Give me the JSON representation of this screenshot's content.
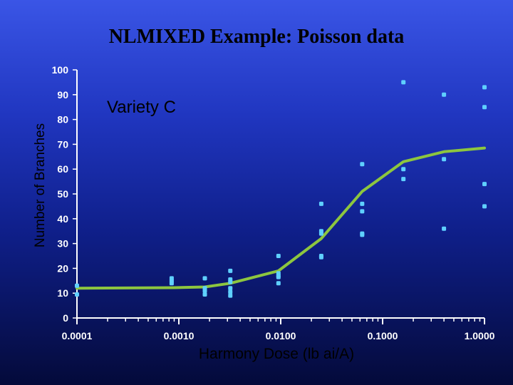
{
  "slide": {
    "title": "NLMIXED Example: Poisson data"
  },
  "colors": {
    "background_top": "#3a55e6",
    "background_bottom": "#040a3a",
    "points": "#5fd0ff",
    "fit_line": "#8dc63f",
    "axis": "#ffffff",
    "tick_labels": "#ffffff",
    "ylabel": "#000000",
    "xlabel": "#000000"
  },
  "chart_data": {
    "type": "scatter",
    "annotation": "Variety C",
    "xlabel": "Harmony Dose (lb ai/A)",
    "ylabel": "Number of Branches",
    "x_scale": "log",
    "xlim": [
      0.0001,
      1.0
    ],
    "ylim": [
      0,
      100
    ],
    "x_tick_labels": [
      "0.0001",
      "0.0010",
      "0.0100",
      "0.1000",
      "1.0000"
    ],
    "x_tick_values": [
      0.0001,
      0.001,
      0.01,
      0.1,
      1.0
    ],
    "y_tick_labels": [
      "0",
      "10",
      "20",
      "30",
      "40",
      "50",
      "60",
      "70",
      "80",
      "90",
      "100"
    ],
    "y_tick_values": [
      0,
      10,
      20,
      30,
      40,
      50,
      60,
      70,
      80,
      90,
      100
    ],
    "grid": false,
    "series": [
      {
        "kind": "points",
        "points": [
          [
            0.0001,
            13
          ],
          [
            0.0001,
            9.5
          ],
          [
            0.00085,
            16
          ],
          [
            0.00085,
            15
          ],
          [
            0.00085,
            14
          ],
          [
            0.0018,
            16
          ],
          [
            0.0018,
            12
          ],
          [
            0.0018,
            11
          ],
          [
            0.0018,
            9.5
          ],
          [
            0.0032,
            19
          ],
          [
            0.0032,
            15.5
          ],
          [
            0.0032,
            14.5
          ],
          [
            0.0032,
            12
          ],
          [
            0.0032,
            10.5
          ],
          [
            0.0032,
            9
          ],
          [
            0.0095,
            25
          ],
          [
            0.0095,
            18
          ],
          [
            0.0095,
            17
          ],
          [
            0.0095,
            16.5
          ],
          [
            0.0095,
            14
          ],
          [
            0.025,
            46
          ],
          [
            0.025,
            35
          ],
          [
            0.025,
            34
          ],
          [
            0.025,
            25
          ],
          [
            0.025,
            24.5
          ],
          [
            0.063,
            62
          ],
          [
            0.063,
            46
          ],
          [
            0.063,
            43
          ],
          [
            0.063,
            34
          ],
          [
            0.063,
            33.5
          ],
          [
            0.16,
            95
          ],
          [
            0.16,
            60
          ],
          [
            0.16,
            56
          ],
          [
            0.4,
            90
          ],
          [
            0.4,
            64
          ],
          [
            0.4,
            36
          ],
          [
            1.0,
            93
          ],
          [
            1.0,
            85
          ],
          [
            1.0,
            54
          ],
          [
            1.0,
            45
          ]
        ]
      },
      {
        "kind": "fitted-line",
        "points": [
          [
            0.0001,
            12
          ],
          [
            0.0009,
            12.2
          ],
          [
            0.0018,
            12.5
          ],
          [
            0.0032,
            14
          ],
          [
            0.0095,
            19
          ],
          [
            0.025,
            32
          ],
          [
            0.063,
            51
          ],
          [
            0.16,
            63
          ],
          [
            0.4,
            67
          ],
          [
            1.0,
            68.5
          ]
        ]
      }
    ]
  }
}
